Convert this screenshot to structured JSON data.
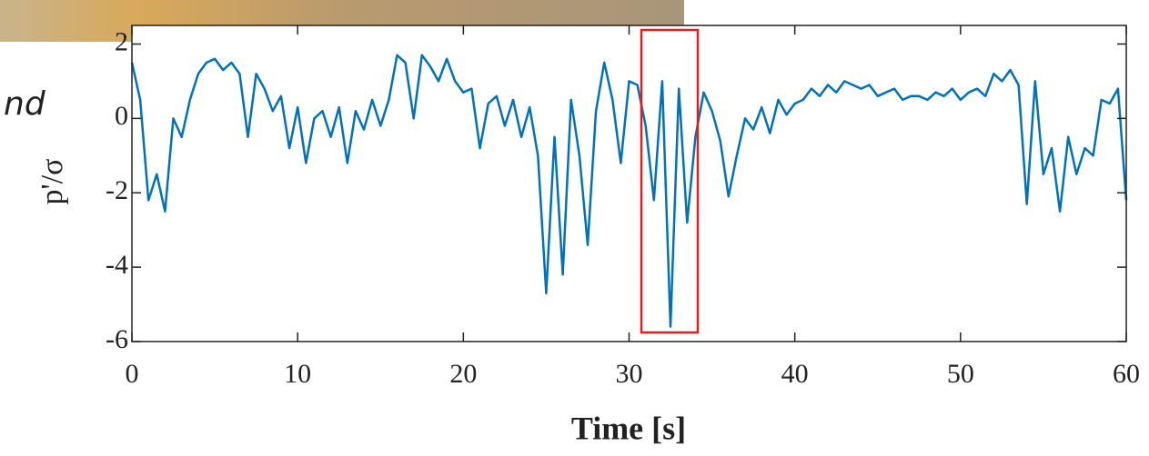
{
  "chart_data": {
    "type": "line",
    "x_label": "Time [s]",
    "y_label": "p'/σ",
    "annotations": [
      "nd"
    ],
    "x": [
      0,
      0.5,
      1,
      1.5,
      2,
      2.5,
      3,
      3.5,
      4,
      4.5,
      5,
      5.5,
      6,
      6.5,
      7,
      7.5,
      8,
      8.5,
      9,
      9.5,
      10,
      10.5,
      11,
      11.5,
      12,
      12.5,
      13,
      13.5,
      14,
      14.5,
      15,
      15.5,
      16,
      16.5,
      17,
      17.5,
      18,
      18.5,
      19,
      19.5,
      20,
      20.5,
      21,
      21.5,
      22,
      22.5,
      23,
      23.5,
      24,
      24.5,
      25,
      25.5,
      26,
      26.5,
      27,
      27.5,
      28,
      28.5,
      29,
      29.5,
      30,
      30.5,
      31,
      31.5,
      32,
      32.5,
      33,
      33.5,
      34,
      34.5,
      35,
      35.5,
      36,
      36.5,
      37,
      37.5,
      38,
      38.5,
      39,
      39.5,
      40,
      40.5,
      41,
      41.5,
      42,
      42.5,
      43,
      43.5,
      44,
      44.5,
      45,
      45.5,
      46,
      46.5,
      47,
      47.5,
      48,
      48.5,
      49,
      49.5,
      50,
      50.5,
      51,
      51.5,
      52,
      52.5,
      53,
      53.5,
      54,
      54.5,
      55,
      55.5,
      56,
      56.5,
      57,
      57.5,
      58,
      58.5,
      59,
      59.5,
      60
    ],
    "series": [
      {
        "color": "#0072bd",
        "values": [
          1.5,
          0.5,
          -2.2,
          -1.5,
          -2.5,
          0.0,
          -0.5,
          0.5,
          1.2,
          1.5,
          1.6,
          1.3,
          1.5,
          1.2,
          -0.5,
          1.2,
          0.8,
          0.2,
          0.6,
          -0.8,
          0.3,
          -1.2,
          0.0,
          0.2,
          -0.5,
          0.3,
          -1.2,
          0.2,
          -0.3,
          0.5,
          -0.2,
          0.5,
          1.7,
          1.5,
          0.0,
          1.7,
          1.4,
          1.0,
          1.6,
          1.0,
          0.7,
          0.8,
          -0.8,
          0.4,
          0.6,
          -0.2,
          0.5,
          -0.5,
          0.3,
          -1.0,
          -4.7,
          -0.5,
          -4.2,
          0.5,
          -1.0,
          -3.4,
          0.2,
          1.5,
          0.5,
          -1.2,
          1.0,
          0.9,
          -0.2,
          -2.2,
          1.0,
          -5.6,
          0.8,
          -2.8,
          -0.5,
          0.7,
          0.2,
          -0.6,
          -2.1,
          -1.0,
          0.0,
          -0.3,
          0.3,
          -0.4,
          0.5,
          0.1,
          0.4,
          0.5,
          0.8,
          0.6,
          0.9,
          0.7,
          1.0,
          0.9,
          0.8,
          0.9,
          0.6,
          0.7,
          0.8,
          0.5,
          0.6,
          0.6,
          0.5,
          0.7,
          0.6,
          0.8,
          0.5,
          0.7,
          0.8,
          0.6,
          1.2,
          1.0,
          1.3,
          0.9,
          -2.3,
          1.0,
          -1.5,
          -0.8,
          -2.5,
          -0.5,
          -1.5,
          -0.8,
          -1.0,
          0.5,
          0.4,
          0.8,
          -2.2
        ]
      }
    ],
    "xlim": [
      0,
      60
    ],
    "xticks": [
      0,
      10,
      20,
      30,
      40,
      50,
      60
    ],
    "ylim": [
      -6,
      2.5
    ],
    "yticks": [
      -6,
      -4,
      -2,
      0,
      2
    ]
  }
}
